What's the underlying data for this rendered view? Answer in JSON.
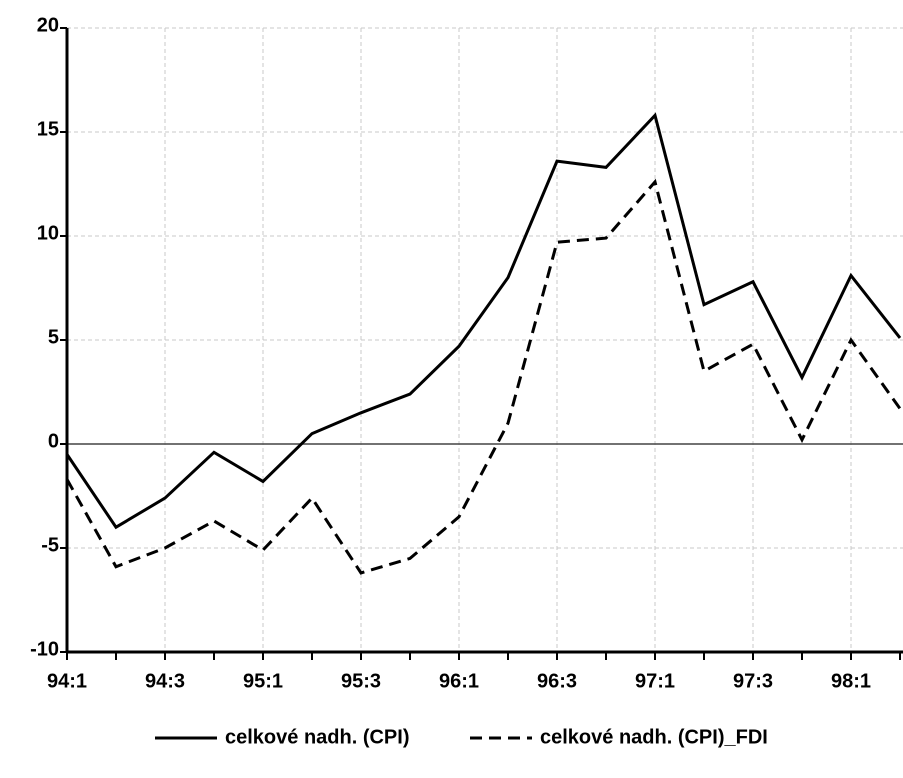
{
  "chart_data": {
    "type": "line",
    "categories": [
      "94:1",
      null,
      "94:3",
      null,
      "95:1",
      null,
      "95:3",
      null,
      "96:1",
      null,
      "96:3",
      null,
      "97:1",
      null,
      "97:3",
      null,
      "98:1",
      null
    ],
    "series": [
      {
        "name": "celkové nadh. (CPI)",
        "color": "#000000",
        "line_style": "solid",
        "values": [
          -0.5,
          -4.0,
          -2.6,
          -0.4,
          -1.8,
          0.5,
          1.5,
          2.4,
          4.7,
          8.0,
          13.6,
          13.3,
          15.8,
          6.7,
          7.8,
          3.2,
          8.1,
          5.1
        ]
      },
      {
        "name": "celkové nadh. (CPI)_FDI",
        "color": "#000000",
        "line_style": "dashed",
        "values": [
          -1.7,
          -5.9,
          -5.0,
          -3.7,
          -5.1,
          -2.6,
          -6.2,
          -5.5,
          -3.5,
          1.0,
          9.7,
          9.9,
          12.6,
          3.5,
          4.8,
          0.2,
          5.0,
          1.7
        ]
      }
    ],
    "ylim": [
      -10,
      20
    ],
    "yticks": [
      20,
      15,
      10,
      5,
      0,
      -5,
      -10
    ],
    "grid": true,
    "legend": "bottom"
  }
}
